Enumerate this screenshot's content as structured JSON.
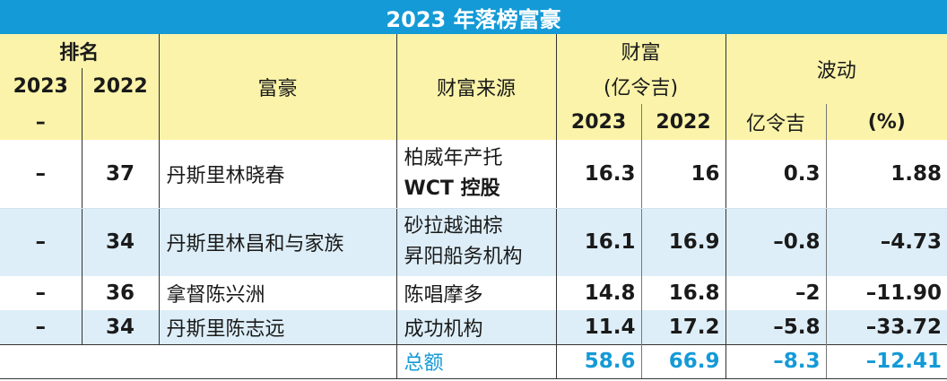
{
  "title": "2023 年落榜富豪",
  "header": {
    "rank": "排名",
    "rank_2023": "2023",
    "rank_2022": "2022",
    "rank_2023_value": "–",
    "name": "富豪",
    "source": "财富来源",
    "wealth": "财富",
    "wealth_unit": "(亿令吉)",
    "wealth_2023": "2023",
    "wealth_2022": "2022",
    "change": "波动",
    "change_amount": "亿令吉",
    "change_pct": "(%)"
  },
  "rows": [
    {
      "rank_2023": "–",
      "rank_2022": "37",
      "name": "丹斯里林晓春",
      "source_1": "柏威年产托",
      "source_2": "WCT 控股",
      "w2023": "16.3",
      "w2022": "16",
      "change": "0.3",
      "pct": "1.88"
    },
    {
      "rank_2023": "–",
      "rank_2022": "34",
      "name": "丹斯里林昌和与家族",
      "source_1": "砂拉越油棕",
      "source_2": "昇阳船务机构",
      "w2023": "16.1",
      "w2022": "16.9",
      "change": "–0.8",
      "pct": "–4.73"
    },
    {
      "rank_2023": "–",
      "rank_2022": "36",
      "name": "拿督陈兴洲",
      "source_1": "陈唱摩多",
      "source_2": "",
      "w2023": "14.8",
      "w2022": "16.8",
      "change": "–2",
      "pct": "–11.90"
    },
    {
      "rank_2023": "–",
      "rank_2022": "34",
      "name": "丹斯里陈志远",
      "source_1": "成功机构",
      "source_2": "",
      "w2023": "11.4",
      "w2022": "17.2",
      "change": "–5.8",
      "pct": "–33.72"
    }
  ],
  "total": {
    "label": "总额",
    "w2023": "58.6",
    "w2022": "66.9",
    "change": "–8.3",
    "pct": "–12.41"
  },
  "colors": {
    "accent": "#149ad6",
    "header_bg": "#faf3a9",
    "stripe": "#ddeef8"
  }
}
